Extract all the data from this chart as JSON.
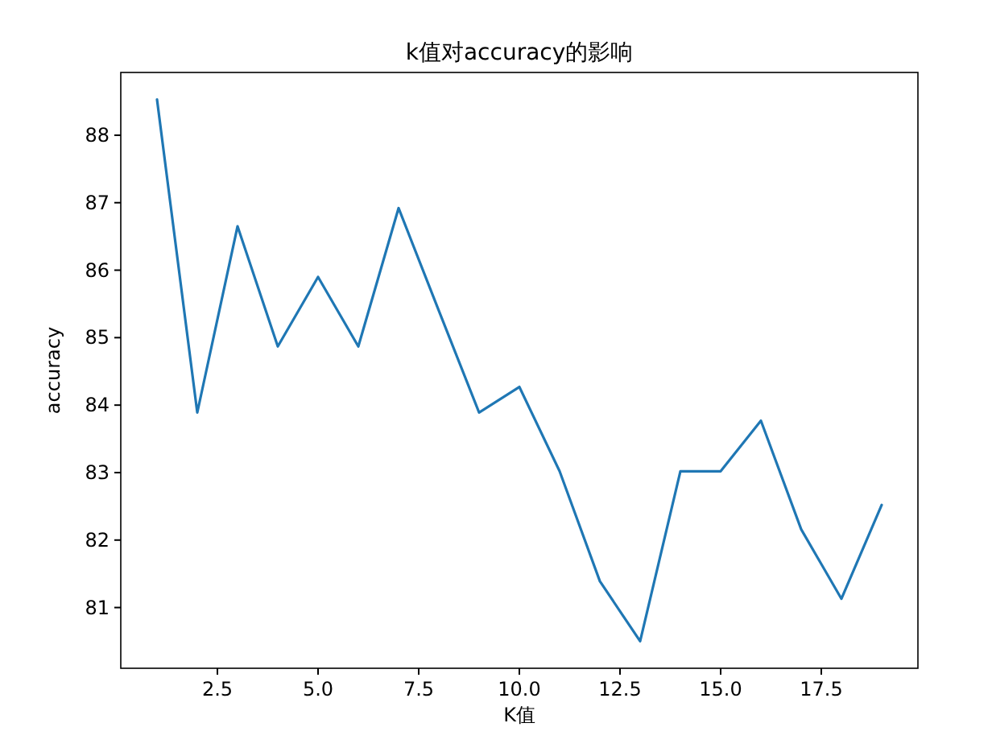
{
  "chart_data": {
    "type": "line",
    "title": "k值对accuracy的影响",
    "xlabel": "K值",
    "ylabel": "accuracy",
    "x": [
      1,
      2,
      3,
      4,
      5,
      6,
      7,
      8,
      9,
      10,
      11,
      12,
      13,
      14,
      15,
      16,
      17,
      18,
      19
    ],
    "series": [
      {
        "color": "#1f77b4",
        "values": [
          88.53,
          83.89,
          86.65,
          84.87,
          85.9,
          84.87,
          86.92,
          85.4,
          83.89,
          84.27,
          83.02,
          81.39,
          80.5,
          83.02,
          83.02,
          83.77,
          82.16,
          81.13,
          82.52
        ]
      }
    ],
    "xlim": [
      0.1,
      19.9
    ],
    "ylim": [
      80.1,
      88.93
    ],
    "xticks": [
      {
        "value": 2.5,
        "label": "2.5"
      },
      {
        "value": 5,
        "label": "5.0"
      },
      {
        "value": 7.5,
        "label": "7.5"
      },
      {
        "value": 10,
        "label": "10.0"
      },
      {
        "value": 12.5,
        "label": "12.5"
      },
      {
        "value": 15,
        "label": "15.0"
      },
      {
        "value": 17.5,
        "label": "17.5"
      }
    ],
    "yticks": [
      81,
      82,
      83,
      84,
      85,
      86,
      87,
      88
    ],
    "grid": false,
    "marker": "none",
    "line_style": "solid"
  }
}
